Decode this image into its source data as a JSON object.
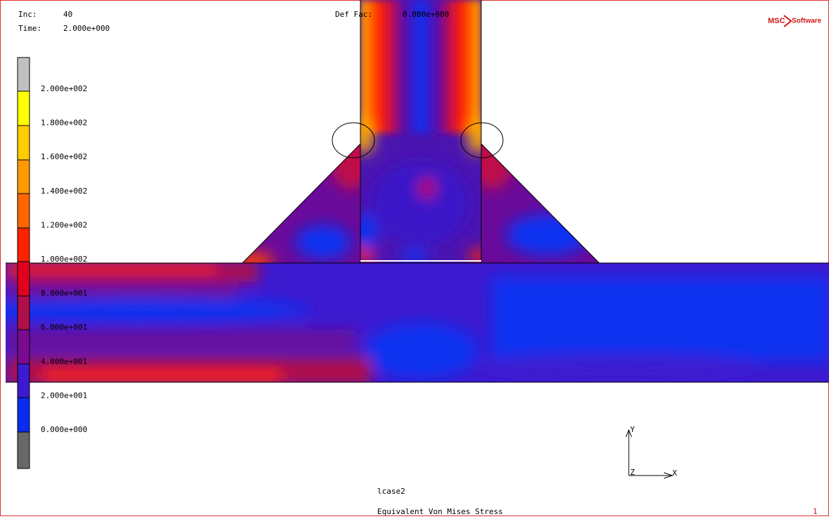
{
  "header": {
    "inc_label": "Inc:",
    "inc": "40",
    "time_label": "Time:",
    "time": "2.000e+000",
    "def_fac_label": "Def Fac:",
    "def_fac": "0.000e+000",
    "logo_left": "MSC",
    "logo_right": "Software"
  },
  "legend": {
    "labels": [
      "2.000e+002",
      "1.800e+002",
      "1.600e+002",
      "1.400e+002",
      "1.200e+002",
      "1.000e+002",
      "8.000e+001",
      "6.000e+001",
      "4.000e+001",
      "2.000e+001",
      "0.000e+000"
    ]
  },
  "axes": {
    "y": "Y",
    "x": "X",
    "z": "Z"
  },
  "footer": {
    "load_case": "lcase2",
    "quantity": "Equivalent Von Mises Stress",
    "index": "1"
  }
}
